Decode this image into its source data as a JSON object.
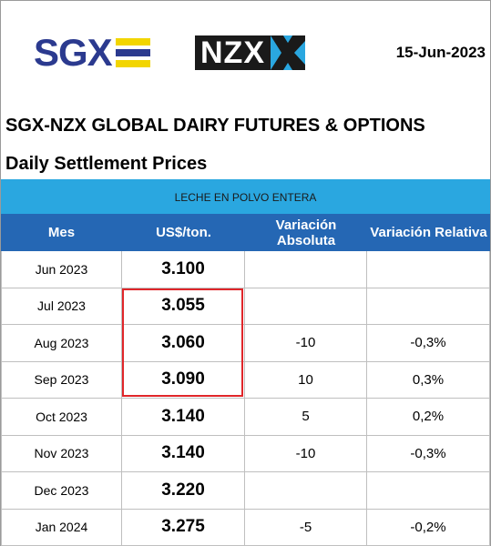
{
  "header": {
    "sgx_logo_text": "SGX",
    "nzx_logo_text": "NZX",
    "date": "15-Jun-2023",
    "title": "SGX-NZX GLOBAL DAIRY FUTURES & OPTIONS",
    "subtitle": "Daily Settlement Prices"
  },
  "colors": {
    "sgx_blue": "#2b3a8f",
    "sgx_yellow": "#f2d500",
    "nzx_blue": "#2aa7e0",
    "band_blue": "#2aa7e0",
    "header_blue": "#2567b4",
    "highlight_red": "#e0262a"
  },
  "table": {
    "product": "LECHE EN POLVO ENTERA",
    "columns": [
      "Mes",
      "US$/ton.",
      "Variación Absoluta",
      "Variación Relativa"
    ],
    "rows": [
      {
        "month": "Jun 2023",
        "price": "3.100",
        "abs": "",
        "rel": ""
      },
      {
        "month": "Jul 2023",
        "price": "3.055",
        "abs": "",
        "rel": ""
      },
      {
        "month": "Aug 2023",
        "price": "3.060",
        "abs": "-10",
        "rel": "-0,3%"
      },
      {
        "month": "Sep 2023",
        "price": "3.090",
        "abs": "10",
        "rel": "0,3%"
      },
      {
        "month": "Oct 2023",
        "price": "3.140",
        "abs": "5",
        "rel": "0,2%"
      },
      {
        "month": "Nov 2023",
        "price": "3.140",
        "abs": "-10",
        "rel": "-0,3%"
      },
      {
        "month": "Dec 2023",
        "price": "3.220",
        "abs": "",
        "rel": ""
      },
      {
        "month": "Jan 2024",
        "price": "3.275",
        "abs": "-5",
        "rel": "-0,2%"
      }
    ]
  }
}
